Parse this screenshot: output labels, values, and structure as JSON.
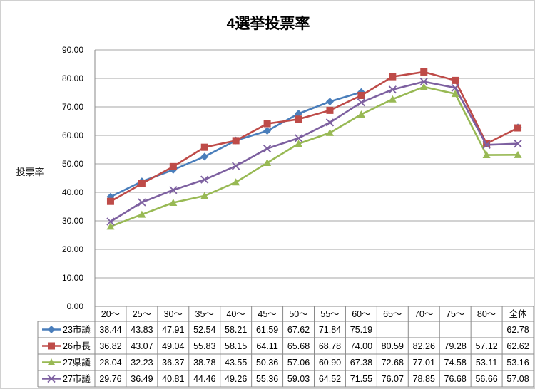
{
  "chart_data": {
    "type": "line",
    "title": "4選挙投票率",
    "ylabel": "投票率",
    "xlabel": "",
    "ylim": [
      0,
      90
    ],
    "y_ticks": [
      "0.00",
      "10.00",
      "20.00",
      "30.00",
      "40.00",
      "50.00",
      "60.00",
      "70.00",
      "80.00",
      "90.00"
    ],
    "grid": true,
    "legend": "data-table-left",
    "categories": [
      "20〜",
      "25〜",
      "30〜",
      "35〜",
      "40〜",
      "45〜",
      "50〜",
      "55〜",
      "60〜",
      "65〜",
      "70〜",
      "75〜",
      "80〜",
      "全体"
    ],
    "series": [
      {
        "name": "23市議",
        "color": "#4a7ebb",
        "marker": "diamond",
        "values": [
          38.44,
          43.83,
          47.91,
          52.54,
          58.21,
          61.59,
          67.62,
          71.84,
          75.19,
          null,
          null,
          null,
          null,
          62.78
        ],
        "labels": [
          "38.44",
          "43.83",
          "47.91",
          "52.54",
          "58.21",
          "61.59",
          "67.62",
          "71.84",
          "75.19",
          "",
          "",
          "",
          "",
          "62.78"
        ]
      },
      {
        "name": "26市長",
        "color": "#be4b48",
        "marker": "square",
        "values": [
          36.82,
          43.07,
          49.04,
          55.83,
          58.15,
          64.11,
          65.68,
          68.78,
          74.0,
          80.59,
          82.26,
          79.28,
          57.12,
          62.62
        ],
        "labels": [
          "36.82",
          "43.07",
          "49.04",
          "55.83",
          "58.15",
          "64.11",
          "65.68",
          "68.78",
          "74.00",
          "80.59",
          "82.26",
          "79.28",
          "57.12",
          "62.62"
        ]
      },
      {
        "name": "27県議",
        "color": "#98b954",
        "marker": "triangle",
        "values": [
          28.04,
          32.23,
          36.37,
          38.78,
          43.55,
          50.36,
          57.06,
          60.9,
          67.38,
          72.68,
          77.01,
          74.58,
          53.11,
          53.16
        ],
        "labels": [
          "28.04",
          "32.23",
          "36.37",
          "38.78",
          "43.55",
          "50.36",
          "57.06",
          "60.90",
          "67.38",
          "72.68",
          "77.01",
          "74.58",
          "53.11",
          "53.16"
        ]
      },
      {
        "name": "27市議",
        "color": "#7d60a0",
        "marker": "x",
        "values": [
          29.76,
          36.49,
          40.81,
          44.46,
          49.26,
          55.36,
          59.03,
          64.52,
          71.55,
          76.07,
          78.85,
          76.68,
          56.66,
          57.08
        ],
        "labels": [
          "29.76",
          "36.49",
          "40.81",
          "44.46",
          "49.26",
          "55.36",
          "59.03",
          "64.52",
          "71.55",
          "76.07",
          "78.85",
          "76.68",
          "56.66",
          "57.08"
        ]
      }
    ]
  }
}
